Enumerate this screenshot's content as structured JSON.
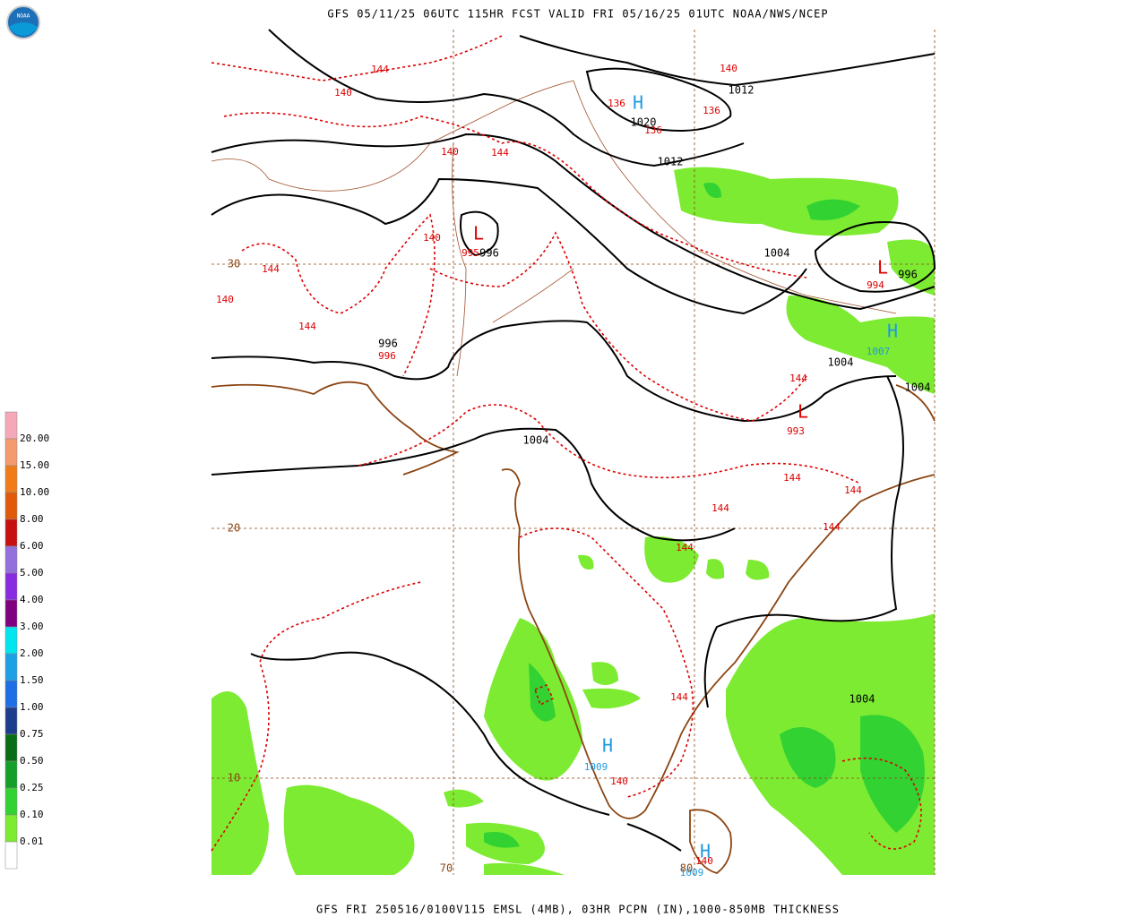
{
  "header": {
    "logo": "NOAA",
    "title": "GFS 05/11/25 06UTC 115HR FCST VALID FRI 05/16/25 01UTC NOAA/NWS/NCEP"
  },
  "footer": {
    "caption": "GFS FRI 250516/0100V115 EMSL (4MB), 03HR PCPN (IN),1000-850MB THICKNESS"
  },
  "legend": {
    "labels": [
      "20.00",
      "15.00",
      "10.00",
      "8.00",
      "6.00",
      "5.00",
      "4.00",
      "3.00",
      "2.00",
      "1.50",
      "1.00",
      "0.75",
      "0.50",
      "0.25",
      "0.10",
      "0.01"
    ],
    "colors": [
      "#f5a8b8",
      "#f39a6e",
      "#f07c18",
      "#e05a0a",
      "#c81010",
      "#9370db",
      "#8a2be2",
      "#800080",
      "#00e5ee",
      "#1ea0e6",
      "#1e6ee6",
      "#1e3c8c",
      "#0a6e14",
      "#14a028",
      "#32d232",
      "#7deb32",
      "#ffffff"
    ]
  },
  "map": {
    "isobar_labels": [
      "1012",
      "1020",
      "1012",
      "996",
      "1004",
      "996",
      "996",
      "1004",
      "1004",
      "1004",
      "1004"
    ],
    "thickness_labels": [
      "144",
      "140",
      "140",
      "136",
      "136",
      "136",
      "140",
      "144",
      "140",
      "144",
      "140",
      "144",
      "144",
      "144",
      "144",
      "144",
      "144",
      "144",
      "144",
      "140",
      "140"
    ],
    "low_values": [
      "995",
      "996",
      "994",
      "993"
    ],
    "high_values": [
      "1007",
      "1009",
      "1009"
    ],
    "high_marker": "H",
    "low_marker": "L",
    "grid_labels": [
      "30",
      "20",
      "10",
      "70",
      "80"
    ]
  }
}
